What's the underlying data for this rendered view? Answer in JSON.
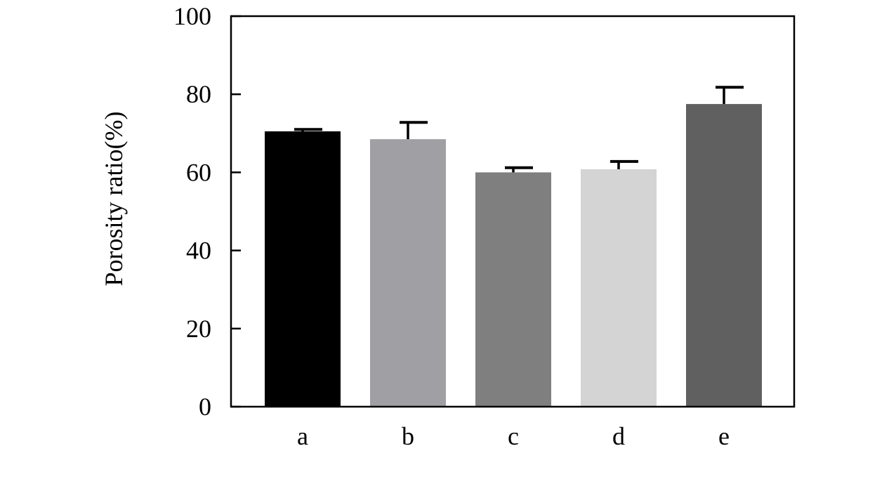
{
  "chart_data": {
    "type": "bar",
    "title": "",
    "xlabel": "",
    "ylabel": "Porosity ratio(%)",
    "categories": [
      "a",
      "b",
      "c",
      "d",
      "e"
    ],
    "values": [
      70.5,
      68.5,
      60,
      60.8,
      77.5
    ],
    "error_upper": [
      71,
      72.8,
      61.2,
      62.8,
      81.8
    ],
    "ylim": [
      0,
      100
    ],
    "yticks": [
      0,
      20,
      40,
      60,
      80,
      100
    ],
    "ytick_labels": [
      "0",
      "20",
      "40",
      "60",
      "80",
      "100"
    ],
    "bar_colors": [
      "#000000",
      "#a0a0a4",
      "#7f7f7f",
      "#d4d4d4",
      "#606060"
    ],
    "error_bar_color": "#000000",
    "grid": false,
    "legend": false
  }
}
